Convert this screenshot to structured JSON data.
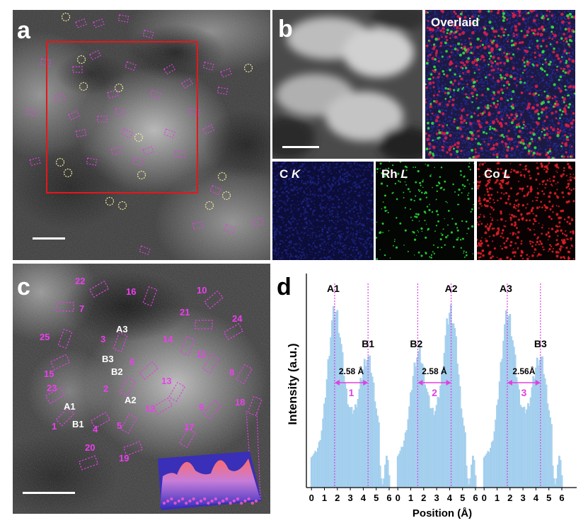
{
  "panel_labels": {
    "a": "a",
    "b": "b",
    "c": "c",
    "d": "d"
  },
  "panel_b": {
    "overlaid": "Overlaid",
    "maps": [
      {
        "element": "C",
        "line": "K",
        "color": "#2233cc"
      },
      {
        "element": "Rh",
        "line": "L",
        "color": "#22cc33"
      },
      {
        "element": "Co",
        "line": "L",
        "color": "#e0202a"
      }
    ]
  },
  "panel_c": {
    "labels_magenta": [
      "22",
      "16",
      "10",
      "7",
      "21",
      "24",
      "25",
      "3",
      "14",
      "11",
      "15",
      "6",
      "8",
      "23",
      "2",
      "13",
      "12",
      "9",
      "18",
      "1",
      "4",
      "5",
      "17",
      "20",
      "19"
    ],
    "labels_white": [
      "A3",
      "B3",
      "B2",
      "A2",
      "A1",
      "B1"
    ]
  },
  "chart_data": {
    "type": "bar",
    "title": "",
    "xlabel": "Position (Å)",
    "ylabel": "Intensity (a.u.)",
    "groups": [
      {
        "x_ticks": [
          "0",
          "1",
          "2",
          "3",
          "4",
          "5",
          "6"
        ],
        "peaks": [
          {
            "label": "A1",
            "x": 1.8
          },
          {
            "label": "B1",
            "x": 4.38
          }
        ],
        "distance_label": "2.58 Å",
        "index_label": "1"
      },
      {
        "x_ticks": [
          "0",
          "1",
          "2",
          "3",
          "4",
          "5",
          "6"
        ],
        "peaks": [
          {
            "label": "B2",
            "x": 1.55
          },
          {
            "label": "A2",
            "x": 4.13
          }
        ],
        "distance_label": "2.58 Å",
        "index_label": "2"
      },
      {
        "x_ticks": [
          "0",
          "1",
          "2",
          "3",
          "4",
          "5",
          "6"
        ],
        "peaks": [
          {
            "label": "A3",
            "x": 1.8
          },
          {
            "label": "B3",
            "x": 4.36
          }
        ],
        "distance_label": "2.56Å",
        "index_label": "3"
      }
    ],
    "colors": {
      "bar": "#a9d2ef",
      "marker": "#e040e0"
    }
  }
}
